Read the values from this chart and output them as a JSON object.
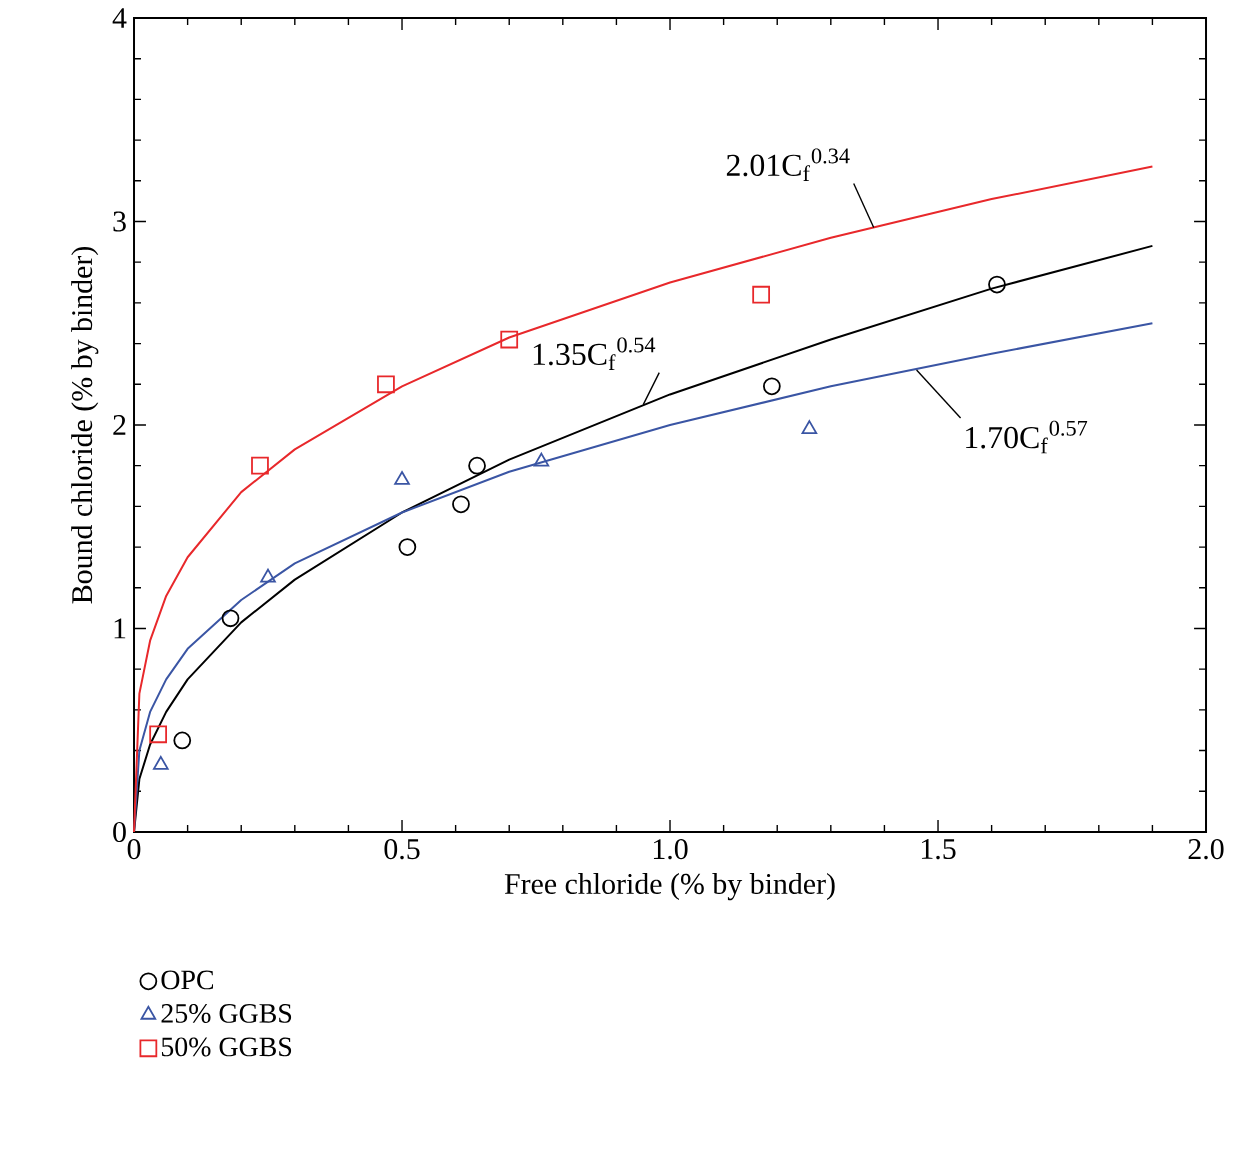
{
  "chart_data": {
    "type": "scatter",
    "xlabel": "Free chloride (% by binder)",
    "ylabel": "Bound chloride (% by binder)",
    "xlim": [
      0,
      2.0
    ],
    "ylim": [
      0,
      4
    ],
    "xticks": [
      0,
      0.5,
      {
        "value": 1.0,
        "label": "1.0"
      },
      1.5,
      {
        "value": 2.0,
        "label": "2.0"
      }
    ],
    "yticks": [
      0,
      1,
      2,
      3,
      4
    ],
    "grid": false,
    "legend": "bottom",
    "series": [
      {
        "name": "OPC",
        "marker": "circle",
        "color": "#000000",
        "x": [
          0.09,
          0.18,
          0.51,
          0.61,
          0.64,
          1.19,
          1.61
        ],
        "values": [
          0.45,
          1.05,
          1.4,
          1.61,
          1.8,
          2.19,
          2.69
        ]
      },
      {
        "name": "25% GGBS",
        "marker": "triangle",
        "color": "#3a55a4",
        "x": [
          0.05,
          0.25,
          0.5,
          0.76,
          1.26
        ],
        "values": [
          0.33,
          1.25,
          1.73,
          1.82,
          1.98
        ]
      },
      {
        "name": "50% GGBS",
        "marker": "square",
        "color": "#e8282b",
        "x": [
          0.045,
          0.235,
          0.47,
          0.7,
          1.17
        ],
        "values": [
          0.48,
          1.8,
          2.2,
          2.42,
          2.64
        ]
      },
      {
        "type": "line",
        "marker": "none",
        "color": "#000000",
        "x": [
          0,
          0.01,
          0.03,
          0.06,
          0.1,
          0.2,
          0.3,
          0.5,
          0.7,
          1.0,
          1.3,
          1.6,
          1.9
        ],
        "values": [
          0,
          0.26,
          0.43,
          0.59,
          0.75,
          1.03,
          1.24,
          1.57,
          1.83,
          2.15,
          2.42,
          2.67,
          2.88
        ]
      },
      {
        "type": "line",
        "marker": "none",
        "color": "#3a55a4",
        "x": [
          0,
          0.01,
          0.03,
          0.06,
          0.1,
          0.2,
          0.3,
          0.5,
          0.7,
          1.0,
          1.3,
          1.6,
          1.9
        ],
        "values": [
          0,
          0.4,
          0.59,
          0.75,
          0.9,
          1.14,
          1.32,
          1.57,
          1.77,
          2.0,
          2.19,
          2.35,
          2.5
        ]
      },
      {
        "type": "line",
        "marker": "none",
        "color": "#e8282b",
        "x": [
          0,
          0.01,
          0.03,
          0.06,
          0.1,
          0.2,
          0.3,
          0.5,
          0.7,
          1.0,
          1.3,
          1.6,
          1.9
        ],
        "values": [
          0,
          0.68,
          0.94,
          1.16,
          1.35,
          1.67,
          1.88,
          2.19,
          2.43,
          2.7,
          2.92,
          3.11,
          3.27
        ]
      }
    ],
    "annotations": [
      {
        "text": "2.01C$_{f}$$^{0.34}$",
        "x": 1.38,
        "y": 2.97
      },
      {
        "text": "1.35C$_{f}$$^{0.54}$",
        "x": 0.95,
        "y": 2.1
      },
      {
        "text": "1.70C$_{f}$$^{0.57}$",
        "x": 1.46,
        "y": 2.27
      }
    ]
  }
}
